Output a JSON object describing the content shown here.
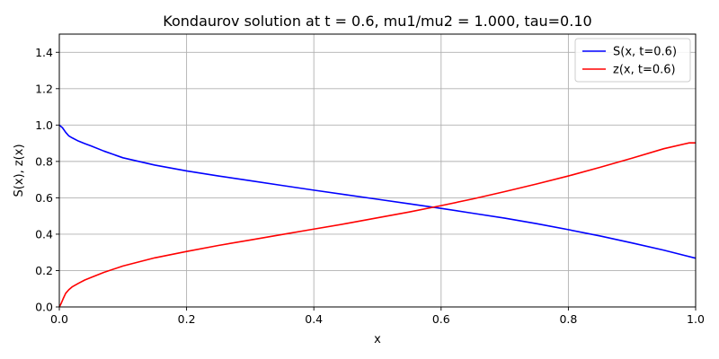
{
  "chart_data": {
    "type": "line",
    "title": "Kondaurov solution at t = 0.6, mu1/mu2 = 1.000, tau=0.10",
    "xlabel": "x",
    "ylabel": "S(x), z(x)",
    "xlim": [
      0,
      1
    ],
    "ylim": [
      0,
      1.5
    ],
    "xticks": [
      0,
      0.2,
      0.4,
      0.6,
      0.8,
      1.0
    ],
    "xtick_labels": [
      "0.0",
      "0.2",
      "0.4",
      "0.6",
      "0.8",
      "1.0"
    ],
    "yticks": [
      0,
      0.2,
      0.4,
      0.6,
      0.8,
      1.0,
      1.2,
      1.4
    ],
    "ytick_labels": [
      "0.0",
      "0.2",
      "0.4",
      "0.6",
      "0.8",
      "1.0",
      "1.2",
      "1.4"
    ],
    "grid": true,
    "legend_position": "top-right",
    "series": [
      {
        "name": "S(x, t=0.6)",
        "color": "#0000ff",
        "x": [
          0,
          0.005,
          0.01,
          0.015,
          0.02,
          0.03,
          0.04,
          0.05,
          0.07,
          0.1,
          0.15,
          0.2,
          0.25,
          0.3,
          0.35,
          0.4,
          0.45,
          0.5,
          0.55,
          0.6,
          0.65,
          0.7,
          0.75,
          0.8,
          0.85,
          0.9,
          0.95,
          1.0
        ],
        "y": [
          1.0,
          0.985,
          0.96,
          0.94,
          0.93,
          0.912,
          0.898,
          0.885,
          0.857,
          0.82,
          0.78,
          0.748,
          0.72,
          0.694,
          0.668,
          0.642,
          0.617,
          0.592,
          0.567,
          0.542,
          0.515,
          0.488,
          0.458,
          0.425,
          0.39,
          0.352,
          0.312,
          0.268
        ]
      },
      {
        "name": "z(x, t=0.6)",
        "color": "#ff0000",
        "x": [
          0,
          0.003,
          0.006,
          0.01,
          0.015,
          0.02,
          0.03,
          0.04,
          0.05,
          0.07,
          0.1,
          0.15,
          0.2,
          0.25,
          0.3,
          0.35,
          0.4,
          0.45,
          0.5,
          0.55,
          0.6,
          0.65,
          0.7,
          0.75,
          0.8,
          0.85,
          0.9,
          0.95,
          0.99,
          1.0
        ],
        "y": [
          0.0,
          0.02,
          0.045,
          0.075,
          0.095,
          0.11,
          0.13,
          0.148,
          0.162,
          0.19,
          0.225,
          0.27,
          0.305,
          0.338,
          0.368,
          0.398,
          0.428,
          0.458,
          0.49,
          0.522,
          0.557,
          0.594,
          0.634,
          0.676,
          0.72,
          0.768,
          0.818,
          0.87,
          0.902,
          0.902
        ]
      }
    ]
  }
}
